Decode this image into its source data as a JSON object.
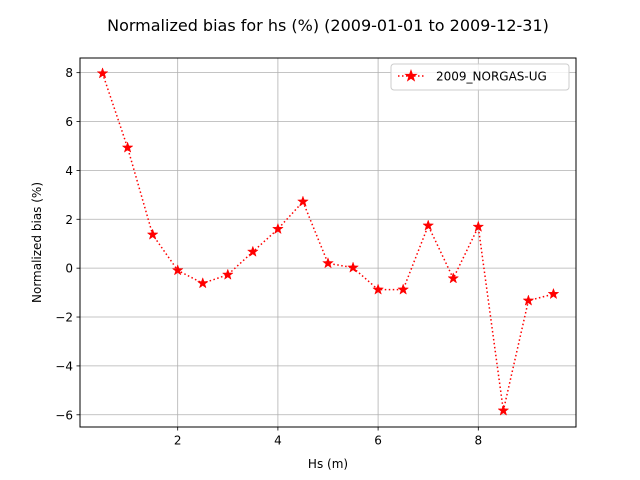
{
  "chart_data": {
    "type": "line",
    "title": "Normalized bias for hs (%) (2009-01-01 to 2009-12-31)",
    "xlabel": "Hs (m)",
    "ylabel": "Normalized bias (%)",
    "xlim": [
      0.05,
      9.95
    ],
    "ylim": [
      -6.5,
      8.6
    ],
    "xticks": [
      2,
      4,
      6,
      8
    ],
    "yticks": [
      -6,
      -4,
      -2,
      0,
      2,
      4,
      6,
      8
    ],
    "xtick_labels": [
      "2",
      "4",
      "6",
      "8"
    ],
    "ytick_labels": [
      "−6",
      "−4",
      "−2",
      "0",
      "2",
      "4",
      "6",
      "8"
    ],
    "grid": true,
    "legend_position": "top-right",
    "series": [
      {
        "name": "2009_NORGAS-UG",
        "color": "#ff0000",
        "line_style": "dotted",
        "marker": "star",
        "x": [
          0.5,
          1.0,
          1.5,
          2.0,
          2.5,
          3.0,
          3.5,
          4.0,
          4.5,
          5.0,
          5.5,
          6.0,
          6.5,
          7.0,
          7.5,
          8.0,
          8.5,
          9.0,
          9.5
        ],
        "y": [
          7.97,
          4.93,
          1.37,
          -0.09,
          -0.62,
          -0.27,
          0.67,
          1.6,
          2.72,
          0.2,
          0.02,
          -0.88,
          -0.88,
          1.74,
          -0.42,
          1.69,
          -5.83,
          -1.33,
          -1.06
        ]
      }
    ]
  }
}
